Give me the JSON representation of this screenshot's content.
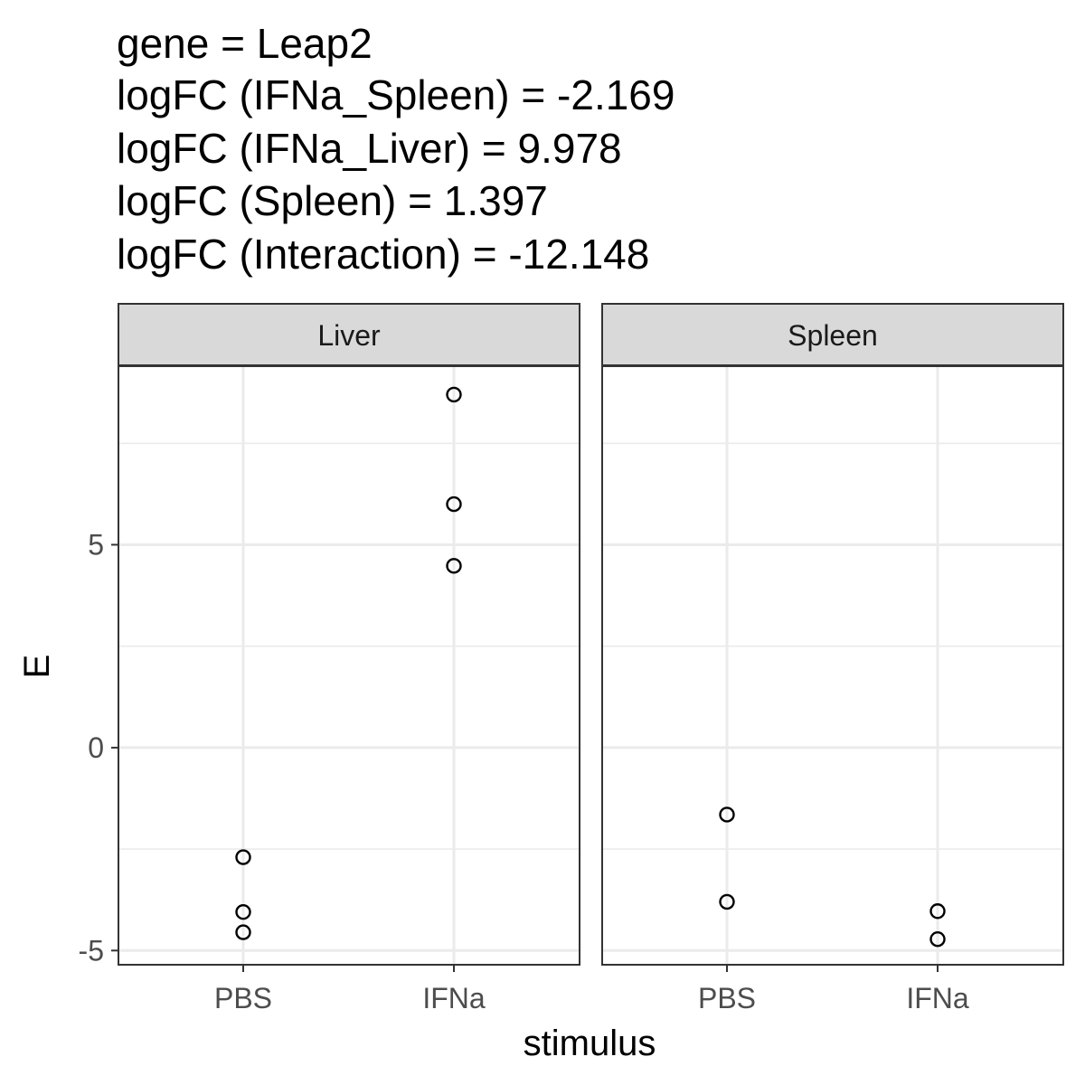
{
  "title_lines": [
    "gene = Leap2",
    "logFC (IFNa_Spleen) = -2.169",
    "logFC (IFNa_Liver) = 9.978",
    "logFC (Spleen) = 1.397",
    "logFC (Interaction) = -12.148"
  ],
  "chart_data": {
    "type": "scatter",
    "xlabel": "stimulus",
    "ylabel": "E",
    "categories": [
      "PBS",
      "IFNa"
    ],
    "ylim": [
      -5.35,
      9.4
    ],
    "yticks": [
      -5,
      0,
      5
    ],
    "ytick_labels": [
      "-5",
      "0",
      "5"
    ],
    "yminor": [
      -2.5,
      2.5,
      7.5
    ],
    "grid": true,
    "panels": [
      {
        "name": "Liver",
        "points": [
          {
            "x": "PBS",
            "y": -2.7
          },
          {
            "x": "PBS",
            "y": -4.05
          },
          {
            "x": "PBS",
            "y": -4.55
          },
          {
            "x": "IFNa",
            "y": 8.7
          },
          {
            "x": "IFNa",
            "y": 6.0
          },
          {
            "x": "IFNa",
            "y": 4.48
          }
        ]
      },
      {
        "name": "Spleen",
        "points": [
          {
            "x": "PBS",
            "y": -1.65
          },
          {
            "x": "PBS",
            "y": -3.8
          },
          {
            "x": "IFNa",
            "y": -4.03
          },
          {
            "x": "IFNa",
            "y": -4.72
          }
        ]
      }
    ]
  }
}
